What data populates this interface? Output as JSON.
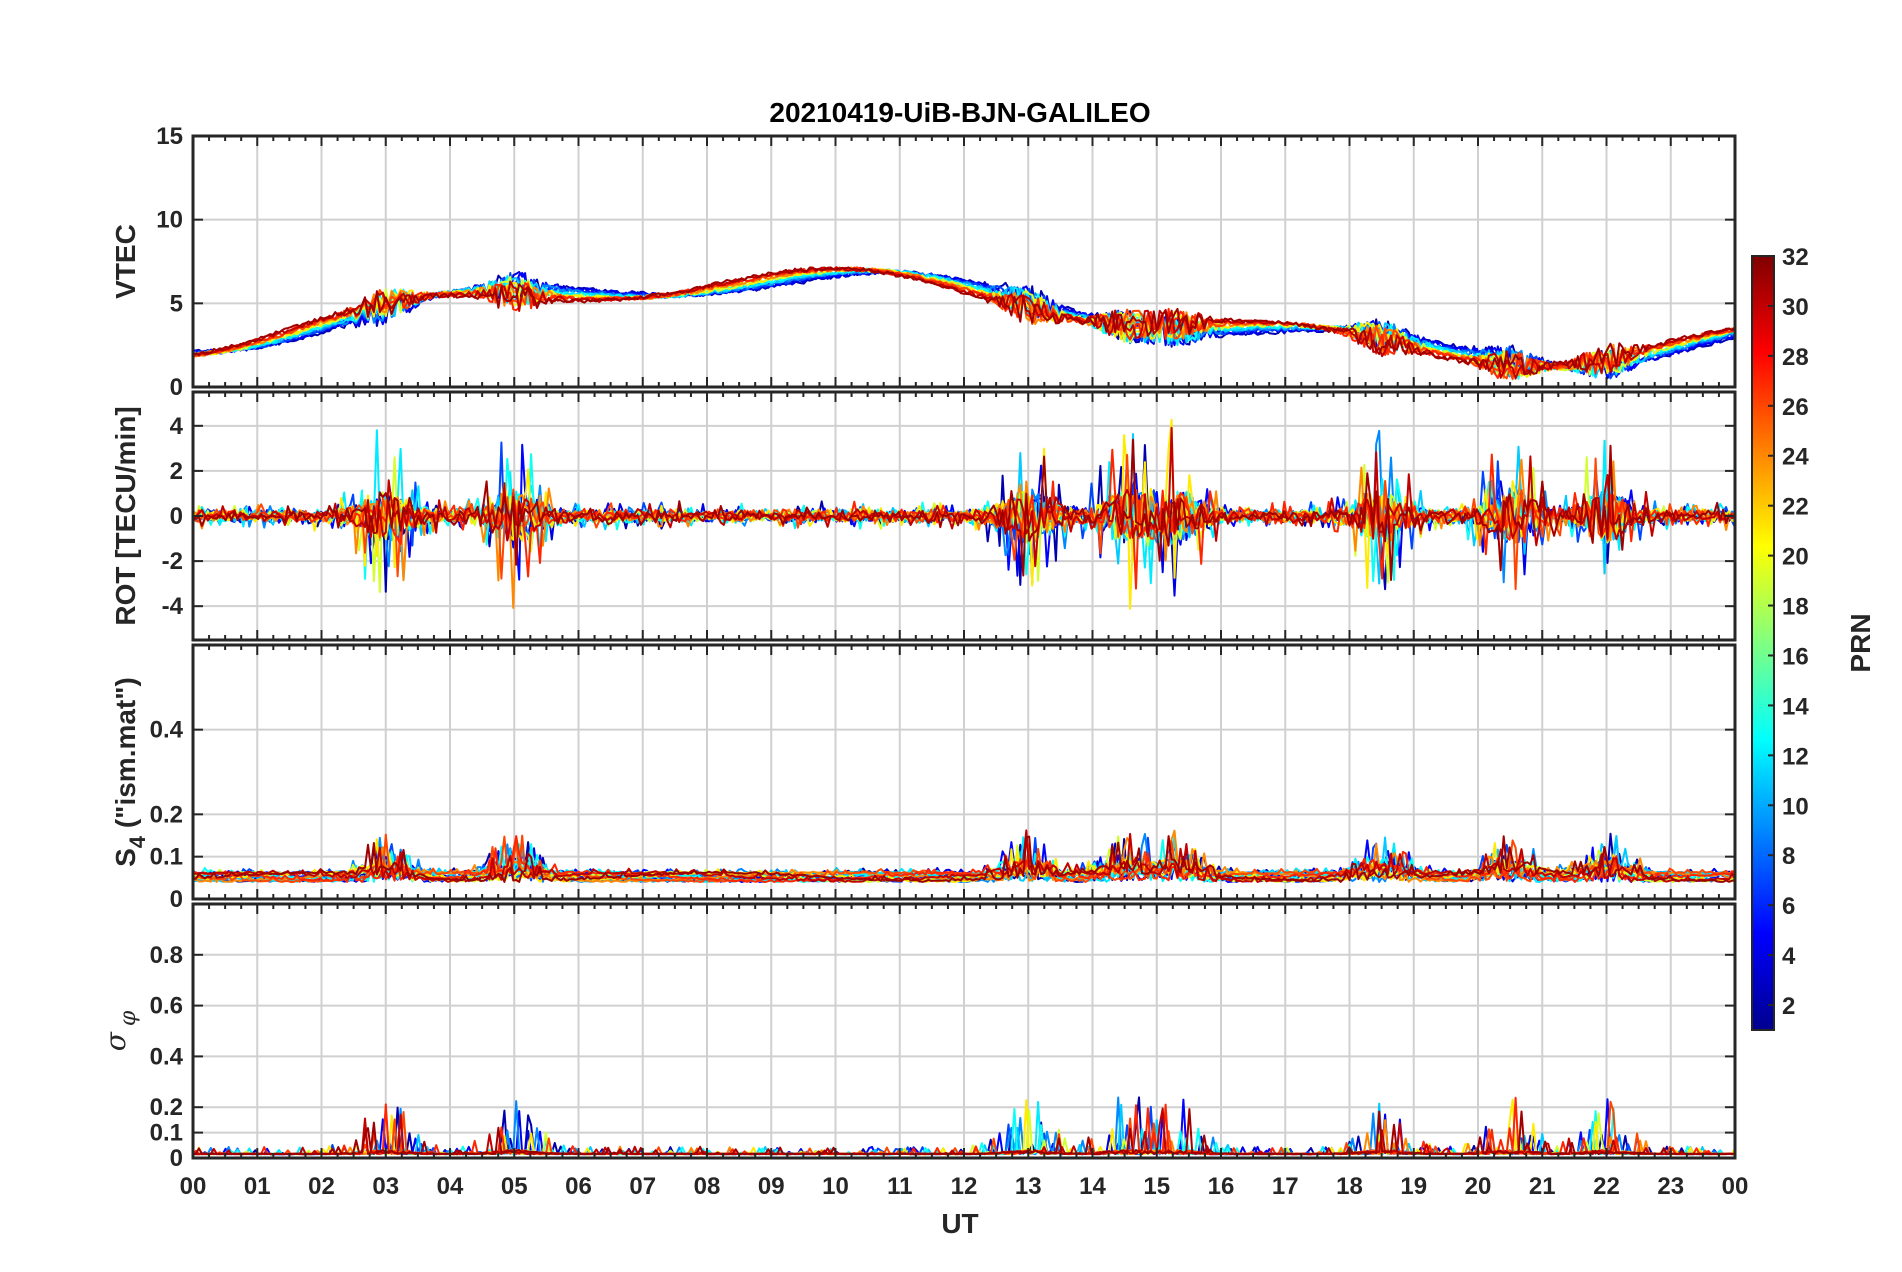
{
  "chart_data": [
    {
      "type": "line",
      "title": "20210419-UiB-BJN-GALILEO",
      "ylabel": "VTEC",
      "ylim": [
        0,
        15
      ],
      "yticks": [
        "0",
        "5",
        "10",
        "15"
      ],
      "yticks_values": [
        0,
        5,
        10,
        15
      ],
      "xlim": [
        0,
        24
      ],
      "grid": true
    },
    {
      "type": "line",
      "ylabel": "ROT [TECU/min]",
      "ylim": [
        -5.5,
        5.5
      ],
      "yticks": [
        "-4",
        "-2",
        "0",
        "2",
        "4"
      ],
      "yticks_values": [
        -4,
        -2,
        0,
        2,
        4
      ],
      "xlim": [
        0,
        24
      ],
      "grid": true
    },
    {
      "type": "line",
      "ylabel": "S4 (\"ism.mat\")",
      "ylabel_main": "S",
      "ylabel_sub": "4",
      "ylabel_rest": " (\"ism.mat\")",
      "ylim": [
        0,
        0.6
      ],
      "yticks": [
        "0",
        "0.1",
        "0.2",
        "0.4"
      ],
      "yticks_values": [
        0,
        0.1,
        0.2,
        0.4
      ],
      "xlim": [
        0,
        24
      ],
      "grid": true
    },
    {
      "type": "line",
      "ylabel": "σ φ",
      "ylabel_sigma": "σ",
      "ylabel_phi": "φ",
      "ylim": [
        0,
        1
      ],
      "yticks": [
        "0",
        "0.1",
        "0.2",
        "0.4",
        "0.6",
        "0.8"
      ],
      "yticks_values": [
        0,
        0.1,
        0.2,
        0.4,
        0.6,
        0.8
      ],
      "xlim": [
        0,
        24
      ],
      "xlabel": "UT",
      "xticks": [
        "00",
        "01",
        "02",
        "03",
        "04",
        "05",
        "06",
        "07",
        "08",
        "09",
        "10",
        "11",
        "12",
        "13",
        "14",
        "15",
        "16",
        "17",
        "18",
        "19",
        "20",
        "21",
        "22",
        "23",
        "00"
      ],
      "grid": true
    }
  ],
  "colorbar": {
    "label": "PRN",
    "range": [
      1,
      32
    ],
    "ticks": [
      "2",
      "4",
      "6",
      "8",
      "10",
      "12",
      "14",
      "16",
      "18",
      "20",
      "22",
      "24",
      "26",
      "28",
      "30",
      "32"
    ],
    "ticks_values": [
      2,
      4,
      6,
      8,
      10,
      12,
      14,
      16,
      18,
      20,
      22,
      24,
      26,
      28,
      30,
      32
    ],
    "colormap": "jet",
    "stops": [
      "#00008f",
      "#0000ff",
      "#0080ff",
      "#00ffff",
      "#80ff80",
      "#ffff00",
      "#ff8000",
      "#ff0000",
      "#800000"
    ]
  },
  "satellites": [
    {
      "prn": 2,
      "vtec_start": 0.0,
      "vtec_end": 24.0
    },
    {
      "prn": 4,
      "vtec_start": 0.0,
      "vtec_end": 24.0
    },
    {
      "prn": 5,
      "vtec_start": 0.0,
      "vtec_end": 24.0
    },
    {
      "prn": 7,
      "vtec_start": 0.0,
      "vtec_end": 24.0
    },
    {
      "prn": 9,
      "vtec_start": 0.0,
      "vtec_end": 24.0
    },
    {
      "prn": 11,
      "vtec_start": 0.0,
      "vtec_end": 24.0
    },
    {
      "prn": 12,
      "vtec_start": 0.0,
      "vtec_end": 24.0
    },
    {
      "prn": 13,
      "vtec_start": 0.0,
      "vtec_end": 24.0
    },
    {
      "prn": 19,
      "vtec_start": 0.0,
      "vtec_end": 24.0
    },
    {
      "prn": 21,
      "vtec_start": 0.0,
      "vtec_end": 24.0
    },
    {
      "prn": 24,
      "vtec_start": 0.0,
      "vtec_end": 24.0
    },
    {
      "prn": 26,
      "vtec_start": 0.0,
      "vtec_end": 24.0
    },
    {
      "prn": 27,
      "vtec_start": 0.0,
      "vtec_end": 24.0
    },
    {
      "prn": 30,
      "vtec_start": 0.0,
      "vtec_end": 24.0
    },
    {
      "prn": 31,
      "vtec_start": 0.0,
      "vtec_end": 24.0
    }
  ],
  "activity": {
    "description_hours": [
      3,
      5,
      13,
      14.5,
      15.3,
      18.5,
      20.5,
      22
    ]
  }
}
